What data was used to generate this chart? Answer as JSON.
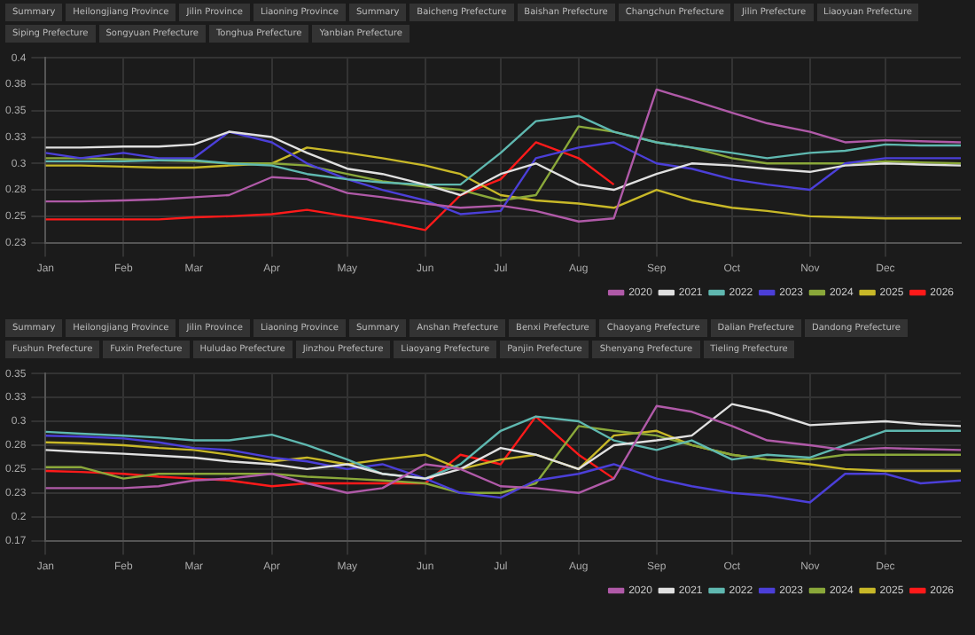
{
  "chart_data": [
    {
      "type": "line",
      "annotations": [
        "Summary",
        "Heilongjiang Province",
        "Jilin Province",
        "Liaoning Province",
        "Summary",
        "Baicheng Prefecture",
        "Baishan Prefecture",
        "Changchun Prefecture",
        "Jilin Prefecture",
        "Liaoyuan Prefecture",
        "Siping Prefecture",
        "Songyuan Prefecture",
        "Tonghua Prefecture",
        "Yanbian Prefecture"
      ],
      "x": [
        "--01-01",
        "--01-15",
        "--02-01",
        "--02-15",
        "--03-01",
        "--03-15",
        "--04-01",
        "--04-15",
        "--05-01",
        "--05-15",
        "--06-01",
        "--06-15",
        "--07-01",
        "--07-15",
        "--08-01",
        "--08-15",
        "--09-01",
        "--09-15",
        "--10-01",
        "--10-15",
        "--11-01",
        "--11-15",
        "--12-01",
        "--12-15",
        "--12-31"
      ],
      "xlim": [
        "--01-01",
        "--12-31"
      ],
      "xticks": [
        {
          "value": "--01-01",
          "label": "Jan"
        },
        {
          "value": "--02-01",
          "label": "Feb"
        },
        {
          "value": "--03-01",
          "label": "Mar"
        },
        {
          "value": "--04-01",
          "label": "Apr"
        },
        {
          "value": "--05-01",
          "label": "May"
        },
        {
          "value": "--06-01",
          "label": "Jun"
        },
        {
          "value": "--07-01",
          "label": "Jul"
        },
        {
          "value": "--08-01",
          "label": "Aug"
        },
        {
          "value": "--09-01",
          "label": "Sep"
        },
        {
          "value": "--10-01",
          "label": "Oct"
        },
        {
          "value": "--11-01",
          "label": "Nov"
        },
        {
          "value": "--12-01",
          "label": "Dec"
        }
      ],
      "ylim": [
        0.225,
        0.4
      ],
      "yticks": [
        {
          "value": 0.225,
          "label": "0.23"
        },
        {
          "value": 0.25,
          "label": "0.25"
        },
        {
          "value": 0.275,
          "label": "0.28"
        },
        {
          "value": 0.3,
          "label": "0.3"
        },
        {
          "value": 0.325,
          "label": "0.33"
        },
        {
          "value": 0.35,
          "label": "0.35"
        },
        {
          "value": 0.375,
          "label": "0.38"
        },
        {
          "value": 0.4,
          "label": "0.4"
        }
      ],
      "grid": true,
      "legend": "bottom",
      "marker": "none",
      "line_style": "solid",
      "series": [
        {
          "name": "2020",
          "color": "#b05aa8",
          "values": [
            0.264,
            0.264,
            0.265,
            0.266,
            0.268,
            0.27,
            0.287,
            0.285,
            0.272,
            0.268,
            0.262,
            0.258,
            0.26,
            0.255,
            0.245,
            0.248,
            0.37,
            0.36,
            0.348,
            0.338,
            0.33,
            0.32,
            0.322,
            0.321,
            0.32
          ]
        },
        {
          "name": "2021",
          "color": "#e0e0e0",
          "values": [
            0.315,
            0.315,
            0.316,
            0.316,
            0.318,
            0.33,
            0.325,
            0.31,
            0.295,
            0.29,
            0.28,
            0.27,
            0.29,
            0.3,
            0.28,
            0.275,
            0.29,
            0.3,
            0.298,
            0.295,
            0.292,
            0.298,
            0.3,
            0.299,
            0.298
          ]
        },
        {
          "name": "2022",
          "color": "#5fb8b0",
          "values": [
            0.302,
            0.302,
            0.302,
            0.303,
            0.303,
            0.3,
            0.298,
            0.29,
            0.285,
            0.282,
            0.28,
            0.28,
            0.31,
            0.34,
            0.345,
            0.33,
            0.32,
            0.315,
            0.31,
            0.305,
            0.31,
            0.312,
            0.318,
            0.317,
            0.317
          ]
        },
        {
          "name": "2023",
          "color": "#4b3fd8",
          "values": [
            0.31,
            0.305,
            0.31,
            0.305,
            0.305,
            0.33,
            0.32,
            0.3,
            0.285,
            0.275,
            0.265,
            0.252,
            0.255,
            0.305,
            0.315,
            0.32,
            0.3,
            0.295,
            0.285,
            0.28,
            0.275,
            0.3,
            0.305,
            0.305,
            0.305
          ]
        },
        {
          "name": "2024",
          "color": "#8aa83a",
          "values": [
            0.305,
            0.305,
            0.304,
            0.303,
            0.302,
            0.3,
            0.3,
            0.298,
            0.29,
            0.283,
            0.278,
            0.275,
            0.265,
            0.27,
            0.335,
            0.33,
            0.32,
            0.315,
            0.305,
            0.3,
            0.3,
            0.3,
            0.302,
            0.301,
            0.3
          ]
        },
        {
          "name": "2025",
          "color": "#c8b828",
          "values": [
            0.298,
            0.298,
            0.297,
            0.296,
            0.296,
            0.298,
            0.3,
            0.315,
            0.31,
            0.305,
            0.298,
            0.29,
            0.27,
            0.265,
            0.262,
            0.258,
            0.275,
            0.265,
            0.258,
            0.255,
            0.25,
            0.249,
            0.248,
            0.248,
            0.248
          ]
        },
        {
          "name": "2026",
          "color": "#ff1a1a",
          "values": [
            0.247,
            0.247,
            0.247,
            0.247,
            0.249,
            0.25,
            0.252,
            0.256,
            0.25,
            0.245,
            0.237,
            0.27,
            0.285,
            0.32,
            0.305,
            0.28,
            null,
            null,
            null,
            null,
            null,
            null,
            null,
            null,
            null
          ]
        }
      ]
    },
    {
      "type": "line",
      "annotations": [
        "Summary",
        "Heilongjiang Province",
        "Jilin Province",
        "Liaoning Province",
        "Summary",
        "Anshan Prefecture",
        "Benxi Prefecture",
        "Chaoyang Prefecture",
        "Dalian Prefecture",
        "Dandong Prefecture",
        "Fushun Prefecture",
        "Fuxin Prefecture",
        "Huludao Prefecture",
        "Jinzhou Prefecture",
        "Liaoyang Prefecture",
        "Panjin Prefecture",
        "Shenyang Prefecture",
        "Tieling Prefecture"
      ],
      "x": [
        "--01-01",
        "--01-15",
        "--02-01",
        "--02-15",
        "--03-01",
        "--03-15",
        "--04-01",
        "--04-15",
        "--05-01",
        "--05-15",
        "--06-01",
        "--06-15",
        "--07-01",
        "--07-15",
        "--08-01",
        "--08-15",
        "--09-01",
        "--09-15",
        "--10-01",
        "--10-15",
        "--11-01",
        "--11-15",
        "--12-01",
        "--12-15",
        "--12-31"
      ],
      "xlim": [
        "--01-01",
        "--12-31"
      ],
      "xticks": [
        {
          "value": "--01-01",
          "label": "Jan"
        },
        {
          "value": "--02-01",
          "label": "Feb"
        },
        {
          "value": "--03-01",
          "label": "Mar"
        },
        {
          "value": "--04-01",
          "label": "Apr"
        },
        {
          "value": "--05-01",
          "label": "May"
        },
        {
          "value": "--06-01",
          "label": "Jun"
        },
        {
          "value": "--07-01",
          "label": "Jul"
        },
        {
          "value": "--08-01",
          "label": "Aug"
        },
        {
          "value": "--09-01",
          "label": "Sep"
        },
        {
          "value": "--10-01",
          "label": "Oct"
        },
        {
          "value": "--11-01",
          "label": "Nov"
        },
        {
          "value": "--12-01",
          "label": "Dec"
        }
      ],
      "ylim": [
        0.175,
        0.35
      ],
      "yticks": [
        {
          "value": 0.175,
          "label": "0.17"
        },
        {
          "value": 0.2,
          "label": "0.2"
        },
        {
          "value": 0.225,
          "label": "0.23"
        },
        {
          "value": 0.25,
          "label": "0.25"
        },
        {
          "value": 0.275,
          "label": "0.28"
        },
        {
          "value": 0.3,
          "label": "0.3"
        },
        {
          "value": 0.325,
          "label": "0.33"
        },
        {
          "value": 0.35,
          "label": "0.35"
        }
      ],
      "grid": true,
      "legend": "bottom",
      "marker": "none",
      "line_style": "solid",
      "series": [
        {
          "name": "2020",
          "color": "#b05aa8",
          "values": [
            0.23,
            0.23,
            0.23,
            0.232,
            0.238,
            0.24,
            0.245,
            0.235,
            0.225,
            0.23,
            0.255,
            0.25,
            0.232,
            0.23,
            0.225,
            0.24,
            0.316,
            0.31,
            0.295,
            0.28,
            0.275,
            0.27,
            0.272,
            0.271,
            0.27
          ]
        },
        {
          "name": "2021",
          "color": "#e0e0e0",
          "values": [
            0.27,
            0.268,
            0.266,
            0.264,
            0.262,
            0.258,
            0.255,
            0.25,
            0.255,
            0.245,
            0.24,
            0.25,
            0.272,
            0.265,
            0.25,
            0.275,
            0.28,
            0.285,
            0.318,
            0.31,
            0.296,
            0.298,
            0.3,
            0.297,
            0.295
          ]
        },
        {
          "name": "2022",
          "color": "#5fb8b0",
          "values": [
            0.289,
            0.287,
            0.285,
            0.283,
            0.28,
            0.28,
            0.286,
            0.275,
            0.26,
            0.245,
            0.24,
            0.255,
            0.29,
            0.305,
            0.3,
            0.28,
            0.27,
            0.28,
            0.26,
            0.265,
            0.262,
            0.275,
            0.29,
            0.29,
            0.29
          ]
        },
        {
          "name": "2023",
          "color": "#4b3fd8",
          "values": [
            0.285,
            0.284,
            0.282,
            0.278,
            0.272,
            0.27,
            0.262,
            0.258,
            0.25,
            0.255,
            0.24,
            0.225,
            0.22,
            0.238,
            0.245,
            0.255,
            0.24,
            0.232,
            0.225,
            0.222,
            0.215,
            0.245,
            0.245,
            0.235,
            0.238
          ]
        },
        {
          "name": "2024",
          "color": "#8aa83a",
          "values": [
            0.252,
            0.252,
            0.24,
            0.245,
            0.245,
            0.245,
            0.245,
            0.242,
            0.24,
            0.238,
            0.235,
            0.225,
            0.225,
            0.235,
            0.295,
            0.29,
            0.285,
            0.275,
            0.265,
            0.26,
            0.26,
            0.265,
            0.265,
            0.265,
            0.265
          ]
        },
        {
          "name": "2025",
          "color": "#c8b828",
          "values": [
            0.278,
            0.277,
            0.275,
            0.272,
            0.27,
            0.265,
            0.258,
            0.262,
            0.255,
            0.26,
            0.265,
            0.25,
            0.26,
            0.265,
            0.25,
            0.285,
            0.29,
            0.275,
            0.265,
            0.26,
            0.255,
            0.25,
            0.248,
            0.248,
            0.248
          ]
        },
        {
          "name": "2026",
          "color": "#ff1a1a",
          "values": [
            0.248,
            0.247,
            0.245,
            0.242,
            0.24,
            0.238,
            0.232,
            0.235,
            0.235,
            0.235,
            0.235,
            0.265,
            0.255,
            0.305,
            0.265,
            0.24,
            null,
            null,
            null,
            null,
            null,
            null,
            null,
            null,
            null
          ]
        }
      ]
    }
  ]
}
